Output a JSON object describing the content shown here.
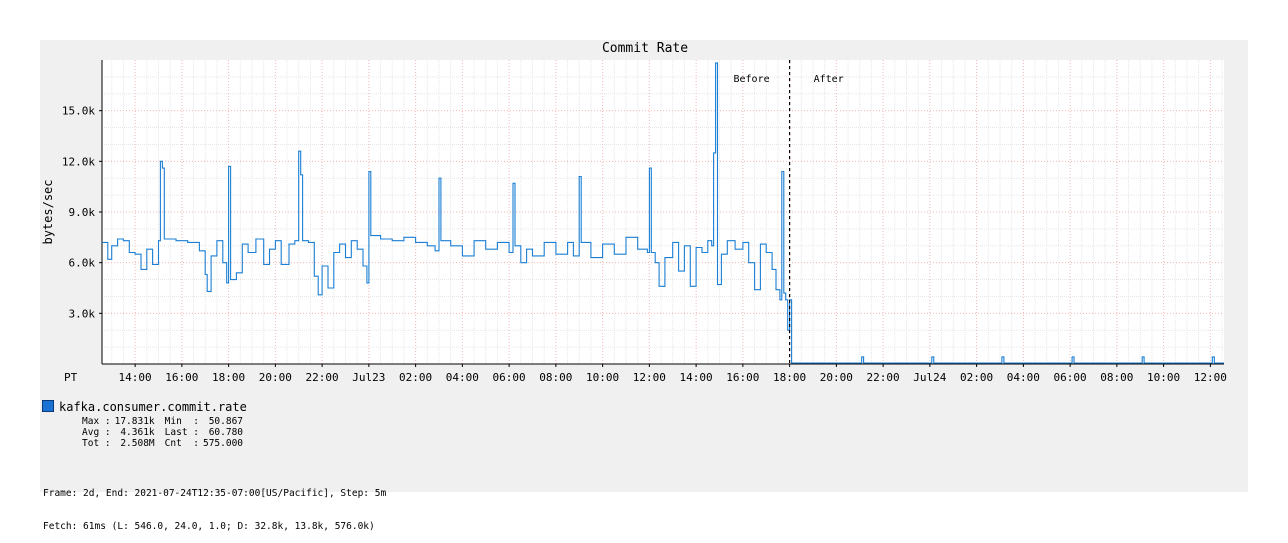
{
  "chart_data": {
    "type": "line",
    "title": "Commit Rate",
    "ylabel": "bytes/sec",
    "ylim": [
      0,
      18000
    ],
    "y_ticks": [
      {
        "value": 3000,
        "label": "3.0k"
      },
      {
        "value": 6000,
        "label": "6.0k"
      },
      {
        "value": 9000,
        "label": "9.0k"
      },
      {
        "value": 12000,
        "label": "12.0k"
      },
      {
        "value": 15000,
        "label": "15.0k"
      }
    ],
    "x_axis_prefix": "PT",
    "x_range": [
      "2021-07-22T12:35",
      "2021-07-24T12:35"
    ],
    "x_ticks": [
      {
        "t": "2021-07-22T14:00",
        "label": "14:00"
      },
      {
        "t": "2021-07-22T16:00",
        "label": "16:00"
      },
      {
        "t": "2021-07-22T18:00",
        "label": "18:00"
      },
      {
        "t": "2021-07-22T20:00",
        "label": "20:00"
      },
      {
        "t": "2021-07-22T22:00",
        "label": "22:00"
      },
      {
        "t": "2021-07-23T00:00",
        "label": "Jul23"
      },
      {
        "t": "2021-07-23T02:00",
        "label": "02:00"
      },
      {
        "t": "2021-07-23T04:00",
        "label": "04:00"
      },
      {
        "t": "2021-07-23T06:00",
        "label": "06:00"
      },
      {
        "t": "2021-07-23T08:00",
        "label": "08:00"
      },
      {
        "t": "2021-07-23T10:00",
        "label": "10:00"
      },
      {
        "t": "2021-07-23T12:00",
        "label": "12:00"
      },
      {
        "t": "2021-07-23T14:00",
        "label": "14:00"
      },
      {
        "t": "2021-07-23T16:00",
        "label": "16:00"
      },
      {
        "t": "2021-07-23T18:00",
        "label": "18:00"
      },
      {
        "t": "2021-07-23T20:00",
        "label": "20:00"
      },
      {
        "t": "2021-07-23T22:00",
        "label": "22:00"
      },
      {
        "t": "2021-07-24T00:00",
        "label": "Jul24"
      },
      {
        "t": "2021-07-24T02:00",
        "label": "02:00"
      },
      {
        "t": "2021-07-24T04:00",
        "label": "04:00"
      },
      {
        "t": "2021-07-24T06:00",
        "label": "06:00"
      },
      {
        "t": "2021-07-24T08:00",
        "label": "08:00"
      },
      {
        "t": "2021-07-24T10:00",
        "label": "10:00"
      },
      {
        "t": "2021-07-24T12:00",
        "label": "12:00"
      }
    ],
    "grid": true,
    "marker": {
      "t": "2021-07-23T18:00",
      "before_label": "Before",
      "after_label": "After"
    },
    "series": [
      {
        "name": "kafka.consumer.commit.rate",
        "color": "#1a7fd4",
        "points": [
          [
            "2021-07-22T12:35",
            7200
          ],
          [
            "2021-07-22T12:50",
            6200
          ],
          [
            "2021-07-22T13:00",
            7000
          ],
          [
            "2021-07-22T13:15",
            7400
          ],
          [
            "2021-07-22T13:30",
            7300
          ],
          [
            "2021-07-22T13:45",
            6600
          ],
          [
            "2021-07-22T14:00",
            6500
          ],
          [
            "2021-07-22T14:15",
            5600
          ],
          [
            "2021-07-22T14:30",
            6800
          ],
          [
            "2021-07-22T14:45",
            5900
          ],
          [
            "2021-07-22T15:00",
            7300
          ],
          [
            "2021-07-22T15:05",
            12000
          ],
          [
            "2021-07-22T15:10",
            11600
          ],
          [
            "2021-07-22T15:15",
            7400
          ],
          [
            "2021-07-22T15:45",
            7300
          ],
          [
            "2021-07-22T16:15",
            7200
          ],
          [
            "2021-07-22T16:45",
            6700
          ],
          [
            "2021-07-22T17:00",
            5300
          ],
          [
            "2021-07-22T17:05",
            4300
          ],
          [
            "2021-07-22T17:15",
            6400
          ],
          [
            "2021-07-22T17:30",
            7300
          ],
          [
            "2021-07-22T17:45",
            6000
          ],
          [
            "2021-07-22T17:55",
            4800
          ],
          [
            "2021-07-22T18:00",
            11700
          ],
          [
            "2021-07-22T18:05",
            5000
          ],
          [
            "2021-07-22T18:20",
            5400
          ],
          [
            "2021-07-22T18:35",
            7100
          ],
          [
            "2021-07-22T18:50",
            6600
          ],
          [
            "2021-07-22T19:10",
            7400
          ],
          [
            "2021-07-22T19:30",
            5900
          ],
          [
            "2021-07-22T19:45",
            6800
          ],
          [
            "2021-07-22T20:00",
            7300
          ],
          [
            "2021-07-22T20:15",
            5900
          ],
          [
            "2021-07-22T20:35",
            7100
          ],
          [
            "2021-07-22T20:50",
            7300
          ],
          [
            "2021-07-22T21:00",
            12600
          ],
          [
            "2021-07-22T21:05",
            11200
          ],
          [
            "2021-07-22T21:10",
            7300
          ],
          [
            "2021-07-22T21:25",
            7200
          ],
          [
            "2021-07-22T21:40",
            5200
          ],
          [
            "2021-07-22T21:50",
            4100
          ],
          [
            "2021-07-22T22:00",
            5800
          ],
          [
            "2021-07-22T22:15",
            4500
          ],
          [
            "2021-07-22T22:30",
            6600
          ],
          [
            "2021-07-22T22:45",
            7100
          ],
          [
            "2021-07-22T23:00",
            6300
          ],
          [
            "2021-07-22T23:15",
            7300
          ],
          [
            "2021-07-22T23:30",
            6800
          ],
          [
            "2021-07-22T23:45",
            5800
          ],
          [
            "2021-07-22T23:55",
            4800
          ],
          [
            "2021-07-23T00:00",
            11400
          ],
          [
            "2021-07-23T00:05",
            7600
          ],
          [
            "2021-07-23T00:30",
            7400
          ],
          [
            "2021-07-23T01:00",
            7300
          ],
          [
            "2021-07-23T01:30",
            7500
          ],
          [
            "2021-07-23T02:00",
            7200
          ],
          [
            "2021-07-23T02:30",
            7000
          ],
          [
            "2021-07-23T02:50",
            6700
          ],
          [
            "2021-07-23T03:00",
            11000
          ],
          [
            "2021-07-23T03:05",
            7300
          ],
          [
            "2021-07-23T03:30",
            7000
          ],
          [
            "2021-07-23T04:00",
            6400
          ],
          [
            "2021-07-23T04:30",
            7300
          ],
          [
            "2021-07-23T05:00",
            6800
          ],
          [
            "2021-07-23T05:30",
            7200
          ],
          [
            "2021-07-23T06:00",
            6600
          ],
          [
            "2021-07-23T06:10",
            10700
          ],
          [
            "2021-07-23T06:15",
            7000
          ],
          [
            "2021-07-23T06:30",
            6000
          ],
          [
            "2021-07-23T06:45",
            6800
          ],
          [
            "2021-07-23T07:00",
            6400
          ],
          [
            "2021-07-23T07:30",
            7200
          ],
          [
            "2021-07-23T08:00",
            6500
          ],
          [
            "2021-07-23T08:30",
            7200
          ],
          [
            "2021-07-23T08:45",
            6400
          ],
          [
            "2021-07-23T09:00",
            11100
          ],
          [
            "2021-07-23T09:05",
            7200
          ],
          [
            "2021-07-23T09:30",
            6300
          ],
          [
            "2021-07-23T10:00",
            7100
          ],
          [
            "2021-07-23T10:30",
            6500
          ],
          [
            "2021-07-23T11:00",
            7500
          ],
          [
            "2021-07-23T11:30",
            6800
          ],
          [
            "2021-07-23T11:55",
            6600
          ],
          [
            "2021-07-23T12:00",
            11600
          ],
          [
            "2021-07-23T12:05",
            6600
          ],
          [
            "2021-07-23T12:15",
            6000
          ],
          [
            "2021-07-23T12:25",
            4600
          ],
          [
            "2021-07-23T12:40",
            6300
          ],
          [
            "2021-07-23T13:00",
            7200
          ],
          [
            "2021-07-23T13:15",
            5500
          ],
          [
            "2021-07-23T13:30",
            7000
          ],
          [
            "2021-07-23T13:45",
            4600
          ],
          [
            "2021-07-23T14:00",
            6900
          ],
          [
            "2021-07-23T14:15",
            6600
          ],
          [
            "2021-07-23T14:30",
            7300
          ],
          [
            "2021-07-23T14:40",
            7000
          ],
          [
            "2021-07-23T14:45",
            12500
          ],
          [
            "2021-07-23T14:50",
            17831
          ],
          [
            "2021-07-23T14:55",
            4700
          ],
          [
            "2021-07-23T15:05",
            6500
          ],
          [
            "2021-07-23T15:20",
            7300
          ],
          [
            "2021-07-23T15:40",
            6800
          ],
          [
            "2021-07-23T16:00",
            7200
          ],
          [
            "2021-07-23T16:15",
            6000
          ],
          [
            "2021-07-23T16:30",
            4400
          ],
          [
            "2021-07-23T16:45",
            7100
          ],
          [
            "2021-07-23T17:00",
            6600
          ],
          [
            "2021-07-23T17:15",
            5600
          ],
          [
            "2021-07-23T17:25",
            4400
          ],
          [
            "2021-07-23T17:35",
            3800
          ],
          [
            "2021-07-23T17:40",
            11400
          ],
          [
            "2021-07-23T17:45",
            4200
          ],
          [
            "2021-07-23T17:50",
            3800
          ],
          [
            "2021-07-23T17:55",
            2000
          ],
          [
            "2021-07-23T18:00",
            3800
          ],
          [
            "2021-07-23T18:05",
            61
          ],
          [
            "2021-07-23T21:00",
            61
          ],
          [
            "2021-07-23T21:05",
            420
          ],
          [
            "2021-07-23T21:10",
            61
          ],
          [
            "2021-07-24T00:00",
            61
          ],
          [
            "2021-07-24T00:05",
            420
          ],
          [
            "2021-07-24T00:10",
            61
          ],
          [
            "2021-07-24T03:00",
            61
          ],
          [
            "2021-07-24T03:05",
            420
          ],
          [
            "2021-07-24T03:10",
            61
          ],
          [
            "2021-07-24T06:00",
            61
          ],
          [
            "2021-07-24T06:05",
            420
          ],
          [
            "2021-07-24T06:10",
            61
          ],
          [
            "2021-07-24T09:00",
            61
          ],
          [
            "2021-07-24T09:05",
            420
          ],
          [
            "2021-07-24T09:10",
            61
          ],
          [
            "2021-07-24T12:00",
            61
          ],
          [
            "2021-07-24T12:05",
            420
          ],
          [
            "2021-07-24T12:10",
            61
          ],
          [
            "2021-07-24T12:35",
            61
          ]
        ]
      }
    ]
  },
  "legend": {
    "series_name": "kafka.consumer.commit.rate",
    "swatch_color": "#1a73d4",
    "stats": [
      {
        "label": "Max :",
        "value": "17.831k",
        "label2": "Min  :",
        "value2": "50.867"
      },
      {
        "label": "Avg :",
        "value": "4.361k",
        "label2": "Last :",
        "value2": "60.780"
      },
      {
        "label": "Tot :",
        "value": "2.508M",
        "label2": "Cnt  :",
        "value2": "575.000"
      }
    ]
  },
  "footer": {
    "line1": "Frame: 2d, End: 2021-07-24T12:35-07:00[US/Pacific], Step: 5m",
    "line2": "Fetch: 61ms (L: 546.0, 24.0, 1.0; D: 32.8k, 13.8k, 576.0k)"
  }
}
